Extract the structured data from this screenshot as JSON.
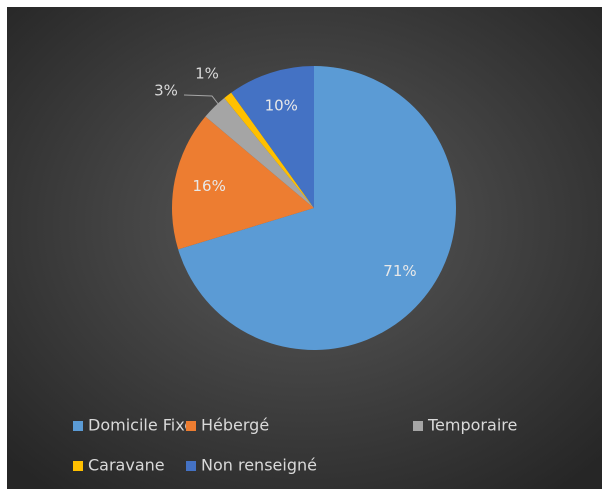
{
  "chart_data": {
    "type": "pie",
    "categories": [
      "Domicile Fixe",
      "Hébergé",
      "Temporaire",
      "Caravane",
      "Non renseigné"
    ],
    "values": [
      71,
      16,
      3,
      1,
      10
    ],
    "value_labels": [
      "71%",
      "16%",
      "3%",
      "1%",
      "10%"
    ],
    "colors": [
      "#5b9bd5",
      "#ed7d31",
      "#a5a5a5",
      "#ffc000",
      "#4472c4"
    ],
    "legend": "bottom"
  }
}
